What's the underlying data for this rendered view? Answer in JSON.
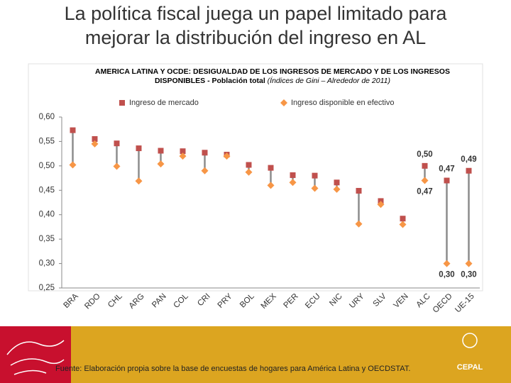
{
  "slide_title": [
    "La política fiscal juega un papel limitado para",
    "mejorar la distribución del ingreso en AL"
  ],
  "chart_data": {
    "type": "dotplot",
    "title": [
      "AMERICA LATINA Y OCDE: DESIGUALDAD DE LOS INGRESOS DE MERCADO Y DE LOS INGRESOS",
      "DISPONIBLES - Población total"
    ],
    "title_note": "(Índices de Gini – Alrededor de 2011)",
    "categories": [
      "BRA",
      "RDO",
      "CHL",
      "ARG",
      "PAN",
      "COL",
      "CRI",
      "PRY",
      "BOL",
      "MEX",
      "PER",
      "ECU",
      "NIC",
      "URY",
      "SLV",
      "VEN",
      "ALC",
      "OECD",
      "UE-15"
    ],
    "series": [
      {
        "name": "Ingreso de mercado",
        "color": "#c0504d",
        "marker": "square",
        "values": [
          0.573,
          0.555,
          0.546,
          0.536,
          0.531,
          0.53,
          0.527,
          0.523,
          0.502,
          0.496,
          0.481,
          0.48,
          0.466,
          0.449,
          0.428,
          0.392,
          0.5,
          0.47,
          0.49
        ],
        "value_labels": [
          null,
          null,
          null,
          null,
          null,
          null,
          null,
          null,
          null,
          null,
          null,
          null,
          null,
          null,
          null,
          null,
          "0,50",
          "0,47",
          "0,49"
        ]
      },
      {
        "name": "Ingreso disponible en efectivo",
        "color": "#f79646",
        "marker": "diamond",
        "values": [
          0.502,
          0.545,
          0.499,
          0.469,
          0.504,
          0.52,
          0.49,
          0.52,
          0.487,
          0.46,
          0.466,
          0.454,
          0.452,
          0.381,
          0.421,
          0.38,
          0.47,
          0.3,
          0.3
        ],
        "value_labels": [
          null,
          null,
          null,
          null,
          null,
          null,
          null,
          null,
          null,
          null,
          null,
          null,
          null,
          null,
          null,
          null,
          "0,47",
          "0,30",
          "0,30"
        ]
      }
    ],
    "ylim": [
      0.25,
      0.6
    ],
    "yticks": [
      {
        "value": 0.25,
        "label": "0,25"
      },
      {
        "value": 0.3,
        "label": "0,30"
      },
      {
        "value": 0.35,
        "label": "0,35"
      },
      {
        "value": 0.4,
        "label": "0,40"
      },
      {
        "value": 0.45,
        "label": "0,45"
      },
      {
        "value": 0.5,
        "label": "0,50"
      },
      {
        "value": 0.55,
        "label": "0,55"
      },
      {
        "value": 0.6,
        "label": "0,60"
      }
    ],
    "legend": "top"
  },
  "footer": {
    "source": "Fuente: Elaboración propia sobre la base de encuestas de hogares para América Latina y OECDSTAT.",
    "logo": "CEPAL"
  }
}
